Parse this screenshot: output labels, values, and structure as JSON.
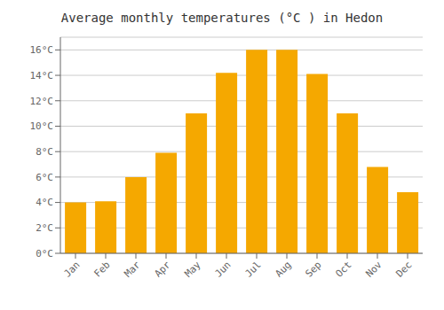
{
  "chart_data": {
    "type": "bar",
    "title": "Average monthly temperatures (°C ) in Hedon",
    "categories": [
      "Jan",
      "Feb",
      "Mar",
      "Apr",
      "May",
      "Jun",
      "Jul",
      "Aug",
      "Sep",
      "Oct",
      "Nov",
      "Dec"
    ],
    "values": [
      4.0,
      4.1,
      6.0,
      7.9,
      11.0,
      14.2,
      16.0,
      16.0,
      14.1,
      11.0,
      6.8,
      4.8
    ],
    "color": "#F5A800",
    "ylim": [
      0,
      17
    ],
    "yticks": [
      {
        "value": 0,
        "label": "0°C"
      },
      {
        "value": 2,
        "label": "2°C"
      },
      {
        "value": 4,
        "label": "4°C"
      },
      {
        "value": 6,
        "label": "6°C"
      },
      {
        "value": 8,
        "label": "8°C"
      },
      {
        "value": 10,
        "label": "10°C"
      },
      {
        "value": 12,
        "label": "12°C"
      },
      {
        "value": 14,
        "label": "14°C"
      },
      {
        "value": 16,
        "label": "16°C"
      }
    ],
    "grid": true
  }
}
